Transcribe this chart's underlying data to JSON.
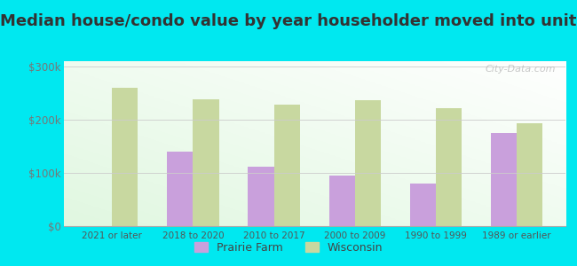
{
  "title": "Median house/condo value by year householder moved into unit",
  "categories": [
    "2021 or later",
    "2018 to 2020",
    "2010 to 2017",
    "2000 to 2009",
    "1990 to 1999",
    "1989 or earlier"
  ],
  "prairie_farm": [
    null,
    140000,
    112000,
    95000,
    80000,
    175000
  ],
  "wisconsin": [
    260000,
    238000,
    228000,
    237000,
    222000,
    193000
  ],
  "prairie_farm_color": "#c9a0dc",
  "wisconsin_color": "#c8d8a0",
  "background_outer": "#00e8f0",
  "yticks": [
    0,
    100000,
    200000,
    300000
  ],
  "ytick_labels": [
    "$0",
    "$100k",
    "$200k",
    "$300k"
  ],
  "ylim": [
    0,
    310000
  ],
  "title_fontsize": 13,
  "legend_labels": [
    "Prairie Farm",
    "Wisconsin"
  ],
  "watermark": "City-Data.com"
}
